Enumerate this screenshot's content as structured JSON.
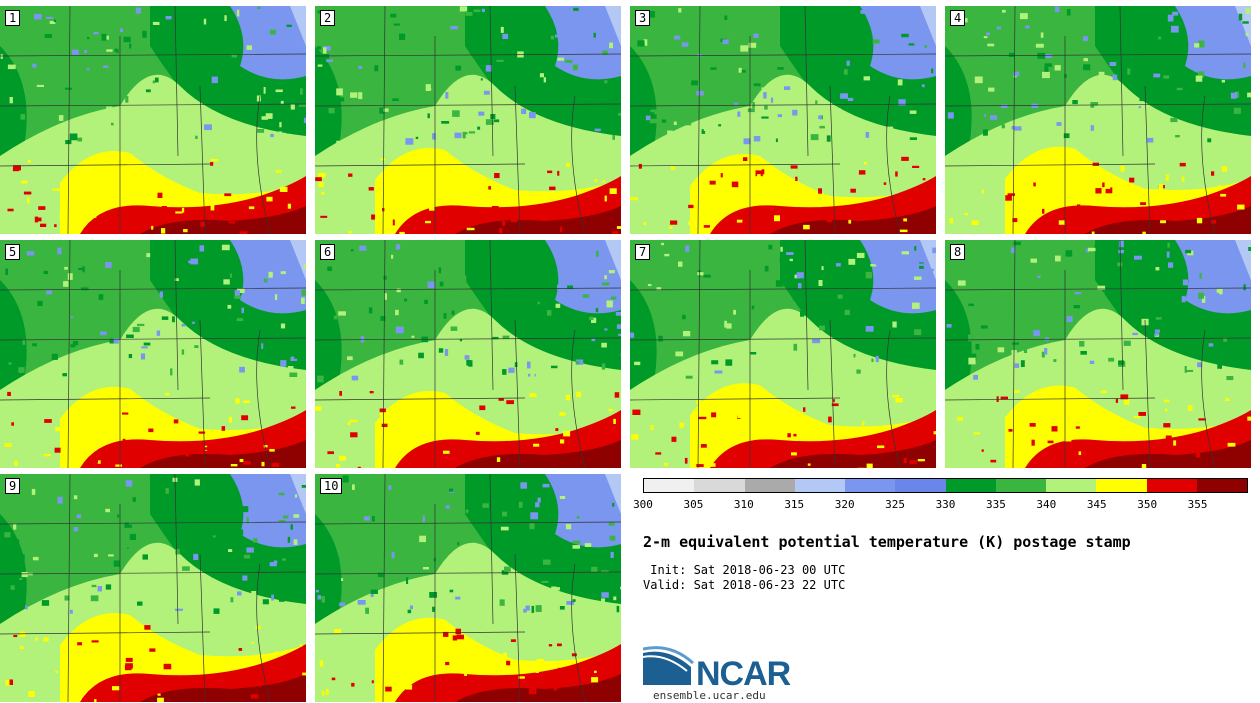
{
  "panels": [
    {
      "label": "1",
      "hot": 0.55
    },
    {
      "label": "2",
      "hot": 0.6
    },
    {
      "label": "3",
      "hot": 0.5
    },
    {
      "label": "4",
      "hot": 0.62
    },
    {
      "label": "5",
      "hot": 0.52
    },
    {
      "label": "6",
      "hot": 0.45
    },
    {
      "label": "7",
      "hot": 0.58
    },
    {
      "label": "8",
      "hot": 0.54
    },
    {
      "label": "9",
      "hot": 0.65
    },
    {
      "label": "10",
      "hot": 0.57
    }
  ],
  "colorbar": {
    "colors": [
      "#f0f0f0",
      "#d9d9d9",
      "#aaaaaa",
      "#b4c8f5",
      "#7a96ee",
      "#6a86ea",
      "#009a28",
      "#3ab540",
      "#b2f27a",
      "#ffff00",
      "#e10000",
      "#8f0000"
    ],
    "ticks": [
      "300",
      "305",
      "310",
      "315",
      "320",
      "325",
      "330",
      "335",
      "340",
      "345",
      "350",
      "355"
    ]
  },
  "title": "2-m equivalent potential temperature (K) postage stamp",
  "init": " Init: Sat 2018-06-23 00 UTC",
  "valid": "Valid: Sat 2018-06-23 22 UTC",
  "logo": {
    "name": "NCAR",
    "url": "ensemble.ucar.edu"
  }
}
